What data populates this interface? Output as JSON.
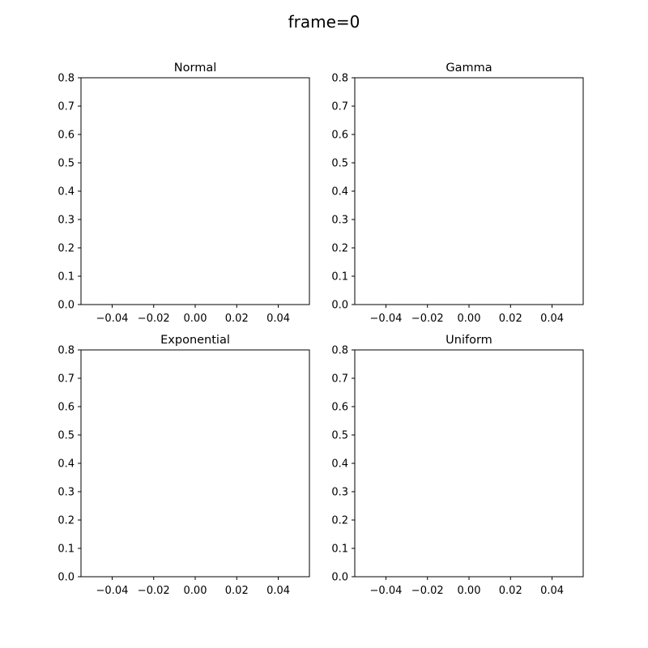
{
  "suptitle": "frame=0",
  "chart_data": [
    {
      "type": "bar",
      "title": "Normal",
      "xlim": [
        -0.055,
        0.055
      ],
      "ylim": [
        0.0,
        0.8
      ],
      "xticks": [
        -0.04,
        -0.02,
        0.0,
        0.02,
        0.04
      ],
      "yticks": [
        0.0,
        0.1,
        0.2,
        0.3,
        0.4,
        0.5,
        0.6,
        0.7,
        0.8
      ],
      "series": []
    },
    {
      "type": "bar",
      "title": "Gamma",
      "xlim": [
        -0.055,
        0.055
      ],
      "ylim": [
        0.0,
        0.8
      ],
      "xticks": [
        -0.04,
        -0.02,
        0.0,
        0.02,
        0.04
      ],
      "yticks": [
        0.0,
        0.1,
        0.2,
        0.3,
        0.4,
        0.5,
        0.6,
        0.7,
        0.8
      ],
      "series": []
    },
    {
      "type": "bar",
      "title": "Exponential",
      "xlim": [
        -0.055,
        0.055
      ],
      "ylim": [
        0.0,
        0.8
      ],
      "xticks": [
        -0.04,
        -0.02,
        0.0,
        0.02,
        0.04
      ],
      "yticks": [
        0.0,
        0.1,
        0.2,
        0.3,
        0.4,
        0.5,
        0.6,
        0.7,
        0.8
      ],
      "series": []
    },
    {
      "type": "bar",
      "title": "Uniform",
      "xlim": [
        -0.055,
        0.055
      ],
      "ylim": [
        0.0,
        0.8
      ],
      "xticks": [
        -0.04,
        -0.02,
        0.0,
        0.02,
        0.04
      ],
      "yticks": [
        0.0,
        0.1,
        0.2,
        0.3,
        0.4,
        0.5,
        0.6,
        0.7,
        0.8
      ],
      "series": []
    }
  ]
}
